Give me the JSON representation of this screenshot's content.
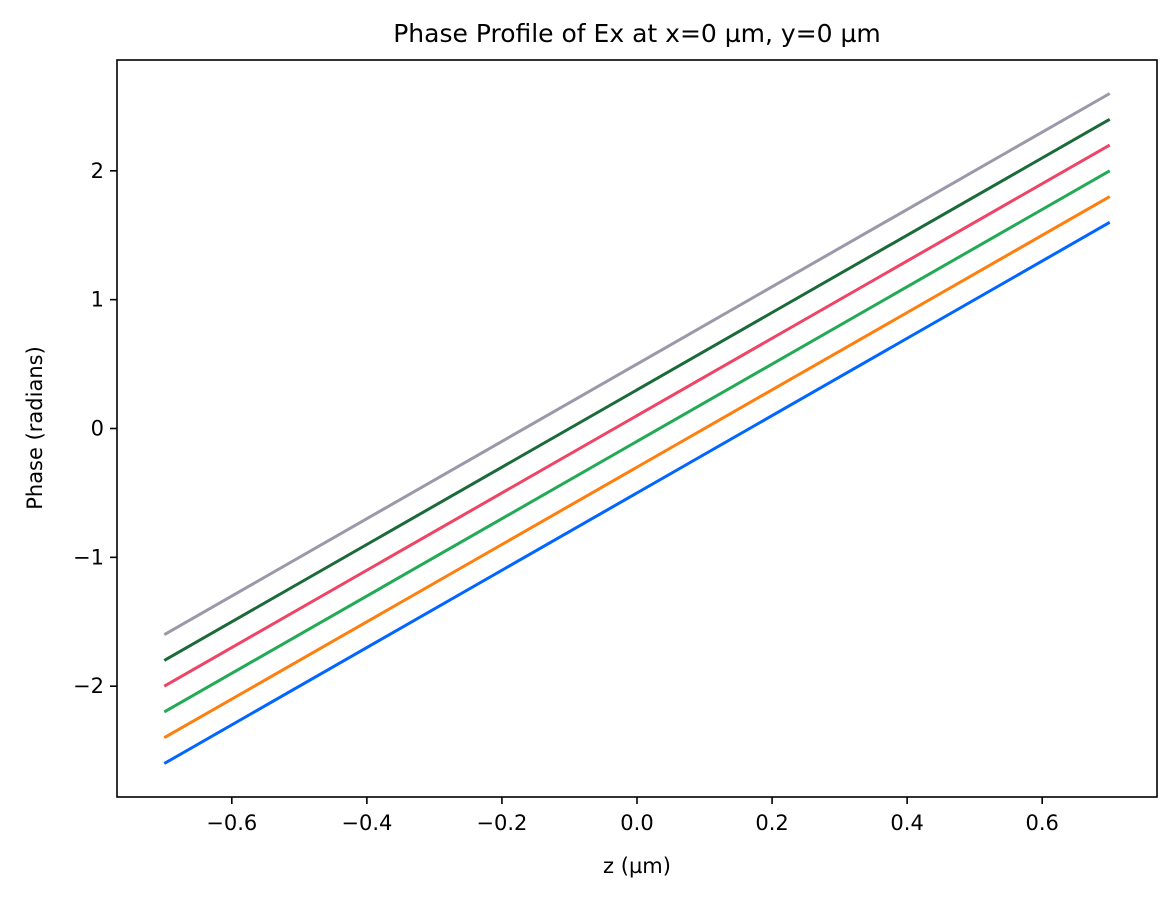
{
  "chart_data": {
    "type": "line",
    "title": "Phase Profile of Ex at x=0 µm, y=0 µm",
    "xlabel": "z (µm)",
    "ylabel": "Phase (radians)",
    "xlim": [
      -0.77,
      0.77
    ],
    "ylim": [
      -2.86,
      2.86
    ],
    "x_ticks": [
      -0.6,
      -0.4,
      -0.2,
      0.0,
      0.2,
      0.4,
      0.6
    ],
    "x_tick_labels": [
      "−0.6",
      "−0.4",
      "−0.2",
      "0.0",
      "0.2",
      "0.4",
      "0.6"
    ],
    "y_ticks": [
      -2,
      -1,
      0,
      1,
      2
    ],
    "y_tick_labels": [
      "−2",
      "−1",
      "0",
      "1",
      "2"
    ],
    "grid": false,
    "legend": "none",
    "x": [
      -0.7,
      0.7
    ],
    "series": [
      {
        "color": "#0066ff",
        "values": [
          -2.6,
          1.6
        ]
      },
      {
        "color": "#ff7f0e",
        "values": [
          -2.4,
          1.8
        ]
      },
      {
        "color": "#22aa55",
        "values": [
          -2.2,
          2.0
        ]
      },
      {
        "color": "#ee4466",
        "values": [
          -2.0,
          2.2
        ]
      },
      {
        "color": "#1b6b3a",
        "values": [
          -1.8,
          2.4
        ]
      },
      {
        "color": "#9999aa",
        "values": [
          -1.6,
          2.6
        ]
      }
    ]
  }
}
